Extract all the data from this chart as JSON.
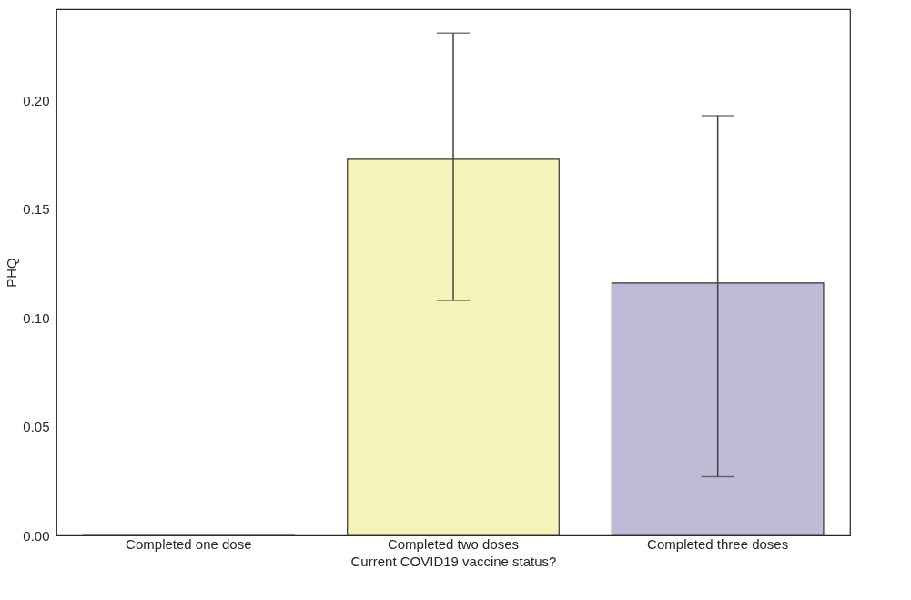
{
  "chart_data": {
    "type": "bar",
    "xlabel": "Current COVID19 vaccine status?",
    "ylabel": "PHQ",
    "categories": [
      "Completed one dose",
      "Completed two doses",
      "Completed three doses"
    ],
    "values": [
      0,
      0.173,
      0.116
    ],
    "colors": [
      "#a3d3c9",
      "#f4f3b8",
      "#bfbbd6"
    ],
    "errors": [
      null,
      [
        0.108,
        0.231
      ],
      [
        0.027,
        0.193
      ]
    ],
    "ylim": [
      0,
      0.242
    ],
    "yticks": [
      {
        "value": 0,
        "label": "0.00"
      },
      0.05,
      {
        "value": 0.1,
        "label": "0.10"
      },
      0.15,
      {
        "value": 0.2,
        "label": "0.20"
      }
    ],
    "grid": false,
    "legend": false
  }
}
